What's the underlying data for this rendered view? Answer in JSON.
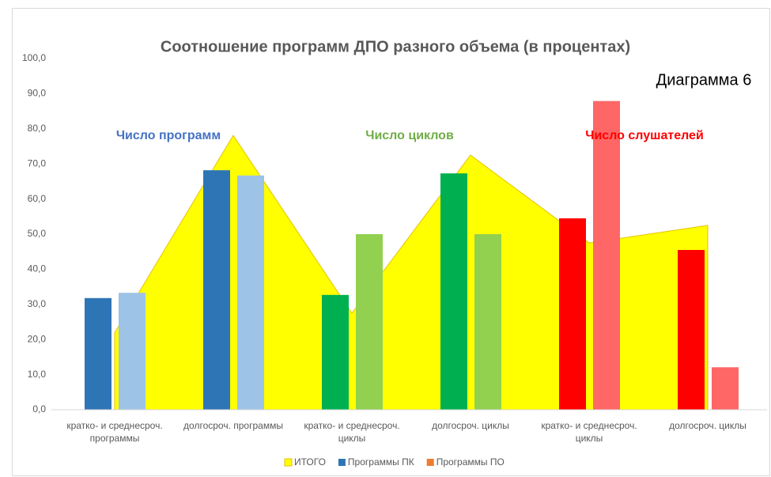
{
  "chart_data": {
    "type": "bar_area",
    "title": "Соотношение программ ДПО разного объема (в процентах)",
    "annotations": [
      "Число программ",
      "Число циклов",
      "Число слушателей",
      "Диаграмма 6"
    ],
    "annotation_colors": [
      "#4472c4",
      "#70ad47",
      "#ff0000",
      "#000000"
    ],
    "categories": [
      "кратко- и среднесроч. программы",
      "долгосроч. программы",
      "кратко- и среднесроч. циклы",
      "долгосроч. циклы",
      "кратко- и среднесроч. циклы",
      "долгосроч. циклы"
    ],
    "series": [
      {
        "name": "ИТОГО",
        "kind": "area",
        "color": "#ffff00",
        "values": [
          21.9,
          78.1,
          27.5,
          72.5,
          47.5,
          52.5
        ]
      },
      {
        "name": "Программы ПК",
        "kind": "bar",
        "color": "#2e75b6",
        "colors": [
          "#2e75b6",
          "#2e75b6",
          "#00b050",
          "#00b050",
          "#ff0000",
          "#ff0000"
        ],
        "values": [
          31.8,
          68.2,
          32.7,
          67.3,
          54.5,
          45.5
        ]
      },
      {
        "name": "Программы ПО",
        "kind": "bar",
        "color": "#ed7d31",
        "colors": [
          "#9dc3e6",
          "#9dc3e6",
          "#92d050",
          "#92d050",
          "#ff6666",
          "#ff6666"
        ],
        "values": [
          33.3,
          66.7,
          50.0,
          50.0,
          87.9,
          12.1
        ]
      }
    ],
    "ylim": [
      0,
      100
    ],
    "yticks": [
      {
        "value": 0,
        "label": "0,0"
      },
      {
        "value": 10,
        "label": "10,0"
      },
      {
        "value": 20,
        "label": "20,0"
      },
      {
        "value": 30,
        "label": "30,0"
      },
      {
        "value": 40,
        "label": "40,0"
      },
      {
        "value": 50,
        "label": "50,0"
      },
      {
        "value": 60,
        "label": "60,0"
      },
      {
        "value": 70,
        "label": "70,0"
      },
      {
        "value": 80,
        "label": "80,0"
      },
      {
        "value": 90,
        "label": "90,0"
      },
      {
        "value": 100,
        "label": {
          "text": "100,0"
        }
      }
    ],
    "grid": false
  }
}
